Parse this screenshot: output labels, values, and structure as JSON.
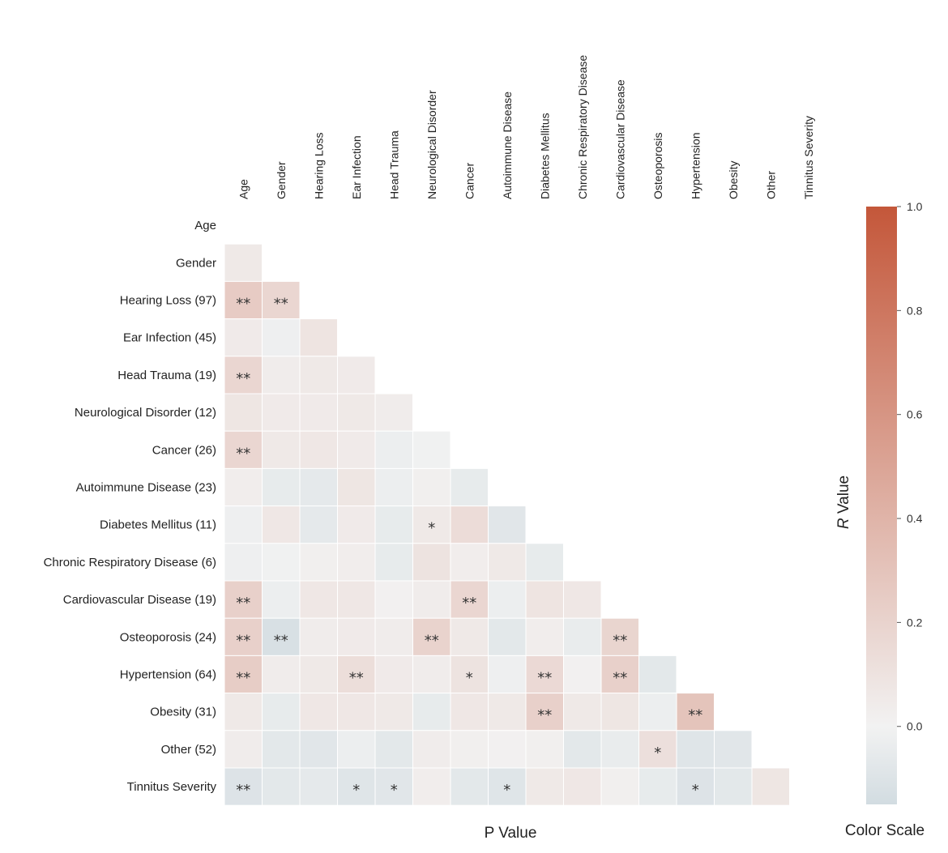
{
  "chart_data": {
    "type": "heatmap",
    "triangle": "lower",
    "columns": [
      "Age",
      "Gender",
      "Hearing Loss",
      "Ear Infection",
      "Head Trauma",
      "Neurological Disorder",
      "Cancer",
      "Autoimmune Disease",
      "Diabetes Mellitus",
      "Chronic Respiratory Disease",
      "Cardiovascular Disease",
      "Osteoporosis",
      "Hypertension",
      "Obesity",
      "Other",
      "Tinnitus Severity"
    ],
    "rows": [
      "Age",
      "Gender",
      "Hearing Loss (97)",
      "Ear Infection (45)",
      "Head Trauma (19)",
      "Neurological Disorder (12)",
      "Cancer (26)",
      "Autoimmune Disease (23)",
      "Diabetes Mellitus (11)",
      "Chronic Respiratory Disease (6)",
      "Cardiovascular Disease (19)",
      "Osteoporosis (24)",
      "Hypertension (64)",
      "Obesity (31)",
      "Other (52)",
      "Tinnitus Severity"
    ],
    "values": [
      [],
      [
        0.06
      ],
      [
        0.25,
        0.18
      ],
      [
        0.05,
        -0.02,
        0.09
      ],
      [
        0.18,
        0.04,
        0.06,
        0.05
      ],
      [
        0.08,
        0.05,
        0.05,
        0.06,
        0.04
      ],
      [
        0.18,
        0.06,
        0.07,
        0.05,
        -0.03,
        -0.01
      ],
      [
        0.03,
        -0.05,
        -0.06,
        0.08,
        -0.03,
        0.02,
        -0.05
      ],
      [
        -0.02,
        0.07,
        -0.06,
        0.05,
        -0.05,
        0.06,
        0.14,
        -0.08
      ],
      [
        -0.02,
        -0.01,
        0.02,
        0.03,
        -0.05,
        0.1,
        0.03,
        0.06,
        -0.05
      ],
      [
        0.22,
        -0.03,
        0.07,
        0.07,
        0.01,
        0.04,
        0.18,
        -0.03,
        0.09,
        0.07
      ],
      [
        0.22,
        -0.12,
        0.04,
        0.05,
        0.04,
        0.2,
        0.06,
        -0.07,
        0.03,
        -0.04,
        0.19
      ],
      [
        0.24,
        0.04,
        0.06,
        0.13,
        0.05,
        0.04,
        0.1,
        -0.02,
        0.16,
        0.01,
        0.22,
        -0.07
      ],
      [
        0.06,
        -0.05,
        0.07,
        0.07,
        0.06,
        -0.05,
        0.07,
        0.06,
        0.22,
        0.06,
        0.08,
        -0.03,
        0.3
      ],
      [
        0.04,
        -0.07,
        -0.08,
        -0.03,
        -0.07,
        0.04,
        0.02,
        0.01,
        0.02,
        -0.07,
        -0.04,
        0.12,
        -0.09,
        -0.08
      ],
      [
        -0.1,
        -0.07,
        -0.06,
        -0.09,
        -0.08,
        0.03,
        -0.07,
        -0.09,
        0.06,
        0.07,
        0.02,
        -0.05,
        -0.1,
        -0.07,
        0.08
      ]
    ],
    "significance": [
      [],
      [
        ""
      ],
      [
        "**",
        "**"
      ],
      [
        "",
        "",
        ""
      ],
      [
        "**",
        "",
        "",
        ""
      ],
      [
        "",
        "",
        "",
        "",
        ""
      ],
      [
        "**",
        "",
        "",
        "",
        "",
        ""
      ],
      [
        "",
        "",
        "",
        "",
        "",
        "",
        ""
      ],
      [
        "",
        "",
        "",
        "",
        "",
        "*",
        "",
        ""
      ],
      [
        "",
        "",
        "",
        "",
        "",
        "",
        "",
        "",
        ""
      ],
      [
        "**",
        "",
        "",
        "",
        "",
        "",
        "**",
        "",
        "",
        ""
      ],
      [
        "**",
        "**",
        "",
        "",
        "",
        "**",
        "",
        "",
        "",
        "",
        "**"
      ],
      [
        "**",
        "",
        "",
        "**",
        "",
        "",
        "*",
        "",
        "**",
        "",
        "**",
        ""
      ],
      [
        "",
        "",
        "",
        "",
        "",
        "",
        "",
        "",
        "**",
        "",
        "",
        "",
        "**"
      ],
      [
        "",
        "",
        "",
        "",
        "",
        "",
        "",
        "",
        "",
        "",
        "",
        "*",
        "",
        ""
      ],
      [
        "**",
        "",
        "",
        "*",
        "*",
        "",
        "",
        "*",
        "",
        "",
        "",
        "",
        "*",
        "",
        ""
      ]
    ],
    "xlabel": "P Value",
    "colorbar": {
      "label_italic": "R",
      "label_rest": " Value",
      "title": "Color Scale",
      "ticks": [
        1.0,
        0.8,
        0.6,
        0.4,
        0.2,
        0.0
      ],
      "tick_labels": [
        "1.0",
        "0.8",
        "0.6",
        "0.4",
        "0.2",
        "0.0"
      ],
      "range": [
        -0.15,
        1.0
      ],
      "color_low": "#d2dce1",
      "color_mid": "#f2f2f2",
      "color_high": "#c4573a"
    }
  }
}
